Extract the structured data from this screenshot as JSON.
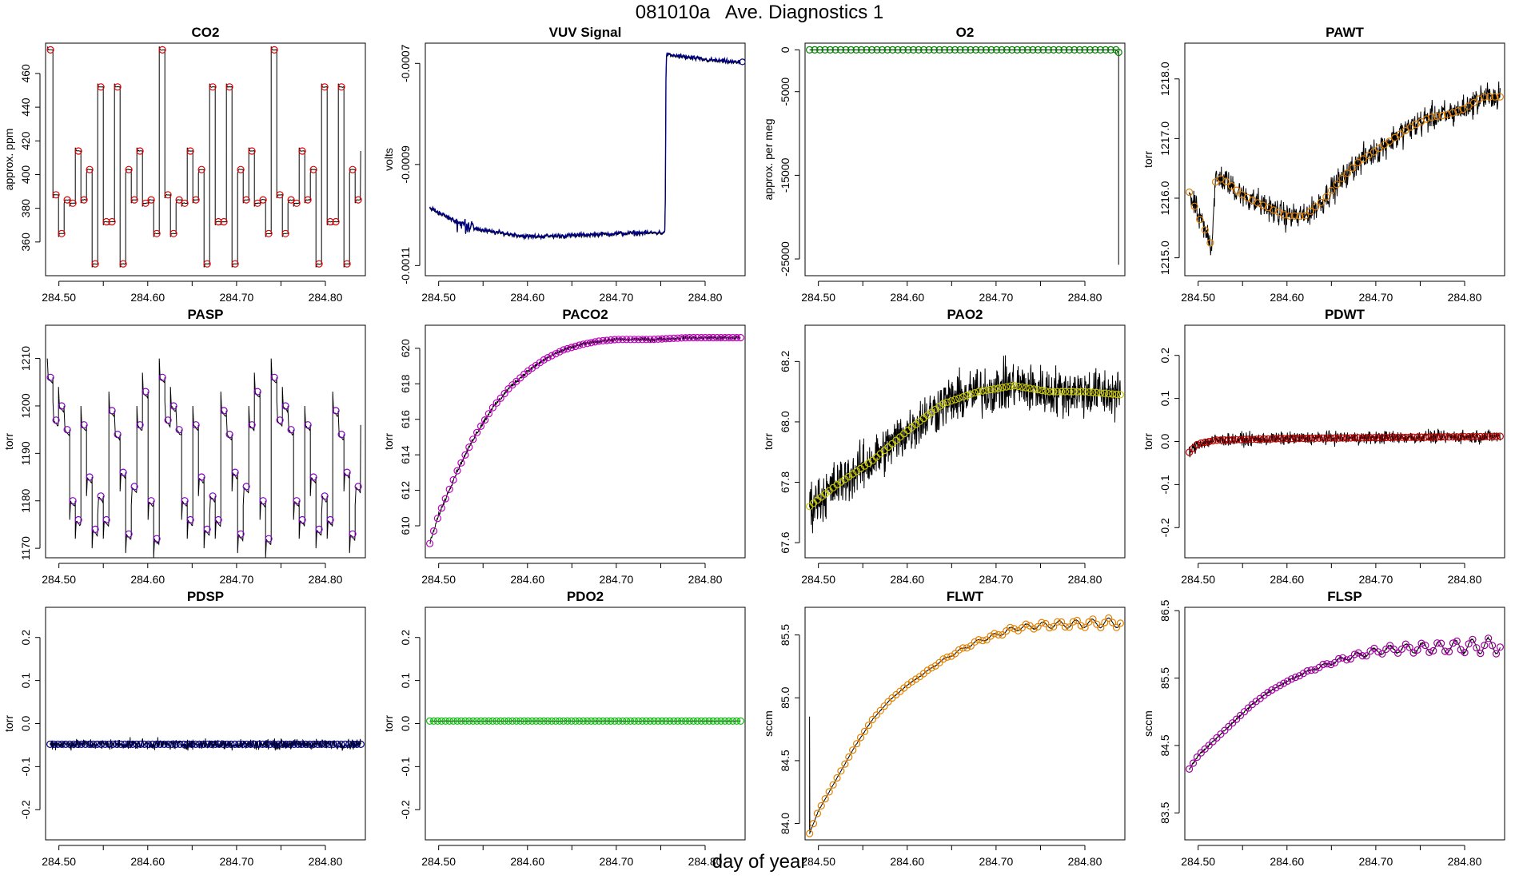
{
  "figure": {
    "title": "081010a   Ave. Diagnostics 1",
    "xlabel": "day of year"
  },
  "chart_data": [
    {
      "id": "co2",
      "type": "line",
      "title": "CO2",
      "ylabel": "approx. ppm",
      "xlim": [
        284.485,
        284.845
      ],
      "ylim": [
        340,
        478
      ],
      "xticks": [
        284.5,
        284.6,
        284.7,
        284.8
      ],
      "xtick_labels": [
        "284.50",
        "284.60",
        "284.70",
        "284.80"
      ],
      "yticks": [
        360,
        380,
        400,
        420,
        440,
        460
      ],
      "ytick_labels": [
        "360",
        "380",
        "400",
        "420",
        "440",
        "460"
      ],
      "marker_color": "#dd0000",
      "pattern": "cycle",
      "base": [
        474,
        388,
        365,
        385,
        383,
        414,
        385,
        403,
        347,
        452,
        372,
        372,
        452,
        347,
        403,
        385,
        414,
        383,
        385,
        365
      ],
      "segment_start": 284.487,
      "segment_step": 0.0063,
      "n_markers": 56
    },
    {
      "id": "vuv",
      "type": "line",
      "title": "VUV Signal",
      "ylabel": "volts",
      "xlim": [
        284.485,
        284.845
      ],
      "ylim": [
        -0.00112,
        -0.00066
      ],
      "xticks": [
        284.5,
        284.6,
        284.7,
        284.8
      ],
      "xtick_labels": [
        "284.50",
        "284.60",
        "284.70",
        "284.80"
      ],
      "yticks": [
        -0.0011,
        -0.0009,
        -0.0007
      ],
      "ytick_labels": [
        "-0.0011",
        "-0.0009",
        "-0.0007"
      ],
      "marker_color": "#000080",
      "pattern": "vuv",
      "points": [
        [
          284.49,
          -0.000987
        ],
        [
          284.52,
          -0.001015
        ],
        [
          284.55,
          -0.001032
        ],
        [
          284.6,
          -0.001044
        ],
        [
          284.65,
          -0.001042
        ],
        [
          284.7,
          -0.001038
        ],
        [
          284.755,
          -0.001036
        ],
        [
          284.756,
          -0.000684
        ],
        [
          284.8,
          -0.000694
        ],
        [
          284.84,
          -0.0007
        ]
      ],
      "noise": 6e-06,
      "n_markers": 0
    },
    {
      "id": "o2",
      "type": "line",
      "title": "O2",
      "ylabel": "approx. per meg",
      "xlim": [
        284.485,
        284.845
      ],
      "ylim": [
        -27000,
        800
      ],
      "xticks": [
        284.5,
        284.6,
        284.7,
        284.8
      ],
      "xtick_labels": [
        "284.50",
        "284.60",
        "284.70",
        "284.80"
      ],
      "yticks": [
        -25000,
        -15000,
        -5000,
        0
      ],
      "ytick_labels": [
        "-25000",
        "-15000",
        "-5000",
        "0"
      ],
      "marker_color": "#008000",
      "pattern": "o2",
      "points": [
        [
          284.49,
          0
        ],
        [
          284.835,
          0
        ],
        [
          284.838,
          -300
        ],
        [
          284.838,
          -25700
        ]
      ],
      "noise": 0,
      "n_markers": 60
    },
    {
      "id": "pawt",
      "type": "line",
      "title": "PAWT",
      "ylabel": "torr",
      "xlim": [
        284.485,
        284.845
      ],
      "ylim": [
        1214.7,
        1218.6
      ],
      "xticks": [
        284.5,
        284.6,
        284.7,
        284.8
      ],
      "xtick_labels": [
        "284.50",
        "284.60",
        "284.70",
        "284.80"
      ],
      "yticks": [
        1215,
        1216,
        1217,
        1218
      ],
      "ytick_labels": [
        "1215.0",
        "1216.0",
        "1217.0",
        "1218.0"
      ],
      "marker_color": "#e08000",
      "pattern": "curve",
      "points": [
        [
          284.49,
          1216.1
        ],
        [
          284.5,
          1215.7
        ],
        [
          284.51,
          1215.4
        ],
        [
          284.515,
          1215.2
        ],
        [
          284.52,
          1216.35
        ],
        [
          284.53,
          1216.3
        ],
        [
          284.55,
          1216.05
        ],
        [
          284.57,
          1215.9
        ],
        [
          284.6,
          1215.7
        ],
        [
          284.62,
          1215.7
        ],
        [
          284.64,
          1215.95
        ],
        [
          284.66,
          1216.3
        ],
        [
          284.68,
          1216.6
        ],
        [
          284.7,
          1216.8
        ],
        [
          284.72,
          1217.0
        ],
        [
          284.74,
          1217.2
        ],
        [
          284.76,
          1217.35
        ],
        [
          284.78,
          1217.4
        ],
        [
          284.8,
          1217.5
        ],
        [
          284.82,
          1217.7
        ],
        [
          284.84,
          1217.7
        ]
      ],
      "noise": 0.3,
      "n_markers": 60
    },
    {
      "id": "pasp",
      "type": "line",
      "title": "PASP",
      "ylabel": "torr",
      "xlim": [
        284.485,
        284.845
      ],
      "ylim": [
        1168,
        1217
      ],
      "xticks": [
        284.5,
        284.6,
        284.7,
        284.8
      ],
      "xtick_labels": [
        "284.50",
        "284.60",
        "284.70",
        "284.80"
      ],
      "yticks": [
        1170,
        1180,
        1190,
        1200,
        1210
      ],
      "ytick_labels": [
        "1170",
        "1180",
        "1190",
        "1200",
        "1210"
      ],
      "marker_color": "#8000c0",
      "pattern": "cycle",
      "base": [
        1206,
        1197,
        1200,
        1195,
        1180,
        1176,
        1196,
        1185,
        1174,
        1181,
        1176,
        1199,
        1194,
        1186,
        1173,
        1183,
        1196,
        1203,
        1180,
        1172
      ],
      "segment_start": 284.487,
      "segment_step": 0.0063,
      "n_markers": 56
    },
    {
      "id": "paco2",
      "type": "line",
      "title": "PACO2",
      "ylabel": "torr",
      "xlim": [
        284.485,
        284.845
      ],
      "ylim": [
        608.2,
        621.3
      ],
      "xticks": [
        284.5,
        284.6,
        284.7,
        284.8
      ],
      "xtick_labels": [
        "284.50",
        "284.60",
        "284.70",
        "284.80"
      ],
      "yticks": [
        610,
        612,
        614,
        616,
        618,
        620
      ],
      "ytick_labels": [
        "610",
        "612",
        "614",
        "616",
        "618",
        "620"
      ],
      "marker_color": "#c000c0",
      "pattern": "curve",
      "points": [
        [
          284.49,
          609.0
        ],
        [
          284.5,
          610.6
        ],
        [
          284.52,
          613.0
        ],
        [
          284.54,
          615.0
        ],
        [
          284.56,
          616.6
        ],
        [
          284.58,
          617.8
        ],
        [
          284.6,
          618.7
        ],
        [
          284.62,
          619.4
        ],
        [
          284.64,
          619.9
        ],
        [
          284.66,
          620.2
        ],
        [
          284.68,
          620.4
        ],
        [
          284.7,
          620.5
        ],
        [
          284.74,
          620.5
        ],
        [
          284.78,
          620.6
        ],
        [
          284.84,
          620.6
        ]
      ],
      "noise": 0.18,
      "n_markers": 80
    },
    {
      "id": "pao2",
      "type": "line",
      "title": "PAO2",
      "ylabel": "torr",
      "xlim": [
        284.485,
        284.845
      ],
      "ylim": [
        67.55,
        68.32
      ],
      "xticks": [
        284.5,
        284.6,
        284.7,
        284.8
      ],
      "xtick_labels": [
        "284.50",
        "284.60",
        "284.70",
        "284.80"
      ],
      "yticks": [
        67.6,
        67.8,
        68.0,
        68.2
      ],
      "ytick_labels": [
        "67.6",
        "67.8",
        "68.0",
        "68.2"
      ],
      "marker_color": "#c8c800",
      "pattern": "curve",
      "points": [
        [
          284.49,
          67.72
        ],
        [
          284.52,
          67.79
        ],
        [
          284.56,
          67.87
        ],
        [
          284.6,
          67.97
        ],
        [
          284.64,
          68.06
        ],
        [
          284.68,
          68.1
        ],
        [
          284.72,
          68.12
        ],
        [
          284.76,
          68.1
        ],
        [
          284.8,
          68.1
        ],
        [
          284.84,
          68.09
        ]
      ],
      "noise": 0.12,
      "n_markers": 80
    },
    {
      "id": "pdwt",
      "type": "line",
      "title": "PDWT",
      "ylabel": "torr",
      "xlim": [
        284.485,
        284.845
      ],
      "ylim": [
        -0.27,
        0.27
      ],
      "xticks": [
        284.5,
        284.6,
        284.7,
        284.8
      ],
      "xtick_labels": [
        "284.50",
        "284.60",
        "284.70",
        "284.80"
      ],
      "yticks": [
        -0.2,
        -0.1,
        0.0,
        0.1,
        0.2
      ],
      "ytick_labels": [
        "-0.2",
        "-0.1",
        "0.0",
        "0.1",
        "0.2"
      ],
      "marker_color": "#c00000",
      "pattern": "curve",
      "points": [
        [
          284.49,
          -0.025
        ],
        [
          284.5,
          -0.005
        ],
        [
          284.52,
          0.003
        ],
        [
          284.6,
          0.007
        ],
        [
          284.7,
          0.009
        ],
        [
          284.8,
          0.011
        ],
        [
          284.84,
          0.012
        ]
      ],
      "noise": 0.022,
      "n_markers": 80
    },
    {
      "id": "pdsp",
      "type": "line",
      "title": "PDSP",
      "ylabel": "torr",
      "xlim": [
        284.485,
        284.845
      ],
      "ylim": [
        -0.27,
        0.27
      ],
      "xticks": [
        284.5,
        284.6,
        284.7,
        284.8
      ],
      "xtick_labels": [
        "284.50",
        "284.60",
        "284.70",
        "284.80"
      ],
      "yticks": [
        -0.2,
        -0.1,
        0.0,
        0.1,
        0.2
      ],
      "ytick_labels": [
        "-0.2",
        "-0.1",
        "0.0",
        "0.1",
        "0.2"
      ],
      "marker_color": "#000080",
      "pattern": "curve",
      "points": [
        [
          284.49,
          -0.048
        ],
        [
          284.84,
          -0.048
        ]
      ],
      "noise": 0.017,
      "n_markers": 80
    },
    {
      "id": "pdo2",
      "type": "line",
      "title": "PDO2",
      "ylabel": "torr",
      "xlim": [
        284.485,
        284.845
      ],
      "ylim": [
        -0.27,
        0.27
      ],
      "xticks": [
        284.5,
        284.6,
        284.7,
        284.8
      ],
      "xtick_labels": [
        "284.50",
        "284.60",
        "284.70",
        "284.80"
      ],
      "yticks": [
        -0.2,
        -0.1,
        0.0,
        0.1,
        0.2
      ],
      "ytick_labels": [
        "-0.2",
        "-0.1",
        "0.0",
        "0.1",
        "0.2"
      ],
      "marker_color": "#00c000",
      "pattern": "curve",
      "points": [
        [
          284.49,
          0.006
        ],
        [
          284.84,
          0.006
        ]
      ],
      "noise": 0.0008,
      "n_markers": 80
    },
    {
      "id": "flwt",
      "type": "line",
      "title": "FLWT",
      "ylabel": "sccm",
      "xlim": [
        284.485,
        284.845
      ],
      "ylim": [
        83.87,
        85.72
      ],
      "xticks": [
        284.5,
        284.6,
        284.7,
        284.8
      ],
      "xtick_labels": [
        "284.50",
        "284.60",
        "284.70",
        "284.80"
      ],
      "yticks": [
        84.0,
        84.5,
        85.0,
        85.5
      ],
      "ytick_labels": [
        "84.0",
        "84.5",
        "85.0",
        "85.5"
      ],
      "marker_color": "#e08000",
      "pattern": "curve",
      "points": [
        [
          284.49,
          83.92
        ],
        [
          284.5,
          84.1
        ],
        [
          284.52,
          84.35
        ],
        [
          284.54,
          84.6
        ],
        [
          284.56,
          84.82
        ],
        [
          284.58,
          84.98
        ],
        [
          284.6,
          85.1
        ],
        [
          284.62,
          85.2
        ],
        [
          284.64,
          85.3
        ],
        [
          284.66,
          85.38
        ],
        [
          284.68,
          85.45
        ],
        [
          284.7,
          85.5
        ],
        [
          284.72,
          85.55
        ],
        [
          284.74,
          85.57
        ],
        [
          284.76,
          85.58
        ],
        [
          284.8,
          85.59
        ],
        [
          284.84,
          85.6
        ]
      ],
      "osc": 0.04,
      "noise": 0.005,
      "n_markers": 80
    },
    {
      "id": "flsp",
      "type": "line",
      "title": "FLSP",
      "ylabel": "sccm",
      "xlim": [
        284.485,
        284.845
      ],
      "ylim": [
        83.1,
        86.55
      ],
      "xticks": [
        284.5,
        284.6,
        284.7,
        284.8
      ],
      "xtick_labels": [
        "284.50",
        "284.60",
        "284.70",
        "284.80"
      ],
      "yticks": [
        83.5,
        84.5,
        85.5,
        86.5
      ],
      "ytick_labels": [
        "83.5",
        "84.5",
        "85.5",
        "86.5"
      ],
      "marker_color": "#a000a0",
      "pattern": "curve",
      "points": [
        [
          284.49,
          84.15
        ],
        [
          284.5,
          84.35
        ],
        [
          284.52,
          84.6
        ],
        [
          284.54,
          84.85
        ],
        [
          284.56,
          85.1
        ],
        [
          284.58,
          85.3
        ],
        [
          284.6,
          85.45
        ],
        [
          284.62,
          85.58
        ],
        [
          284.64,
          85.68
        ],
        [
          284.66,
          85.77
        ],
        [
          284.68,
          85.84
        ],
        [
          284.7,
          85.9
        ],
        [
          284.72,
          85.93
        ],
        [
          284.76,
          85.95
        ],
        [
          284.8,
          85.97
        ],
        [
          284.84,
          85.98
        ]
      ],
      "osc": 0.12,
      "noise": 0.02,
      "n_markers": 80
    }
  ]
}
